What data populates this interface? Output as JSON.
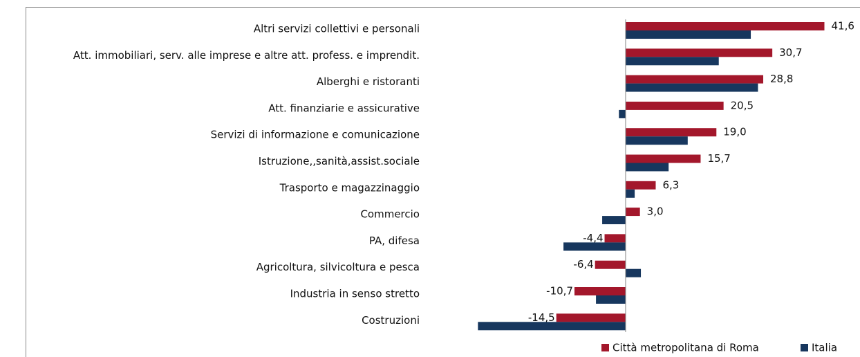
{
  "chart_data": {
    "type": "hbar",
    "categories": [
      "Altri servizi collettivi e personali",
      "Att. immobiliari, serv. alle imprese e altre att. profess. e imprendit.",
      "Alberghi e ristoranti",
      "Att. finanziarie e assicurative",
      "Servizi di informazione e comunicazione",
      "Istruzione,,sanità,assist.sociale",
      "Trasporto e magazzinaggio",
      "Commercio",
      "PA, difesa",
      "Agricoltura, silvicoltura e pesca",
      "Industria in senso stretto",
      "Costruzioni"
    ],
    "series": [
      {
        "name": "Città metropolitana di Roma",
        "color": "#a3172b",
        "values": [
          41.6,
          30.7,
          28.8,
          20.5,
          19.0,
          15.7,
          6.3,
          3.0,
          -4.4,
          -6.4,
          -10.7,
          -14.5
        ],
        "value_labels": [
          "41,6",
          "30,7",
          "28,8",
          "20,5",
          "19,0",
          "15,7",
          "6,3",
          "3,0",
          "-4,4",
          "-6,4",
          "-10,7",
          "-14,5"
        ]
      },
      {
        "name": "Italia",
        "color": "#17375e",
        "values": [
          26.2,
          19.5,
          27.7,
          -1.4,
          13.0,
          9.0,
          1.9,
          -4.9,
          -13.0,
          3.2,
          -6.2,
          -30.9
        ]
      }
    ],
    "xlim": [
      -35,
      45
    ],
    "legend": "bottom-right"
  }
}
